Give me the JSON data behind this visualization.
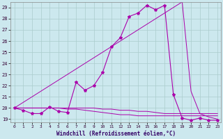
{
  "title": "Windchill (Refroidissement éolien,°C)",
  "bg_color": "#cce8ee",
  "grid_color": "#aacccc",
  "line_color": "#aa00aa",
  "ylim_min": 18.7,
  "ylim_max": 29.5,
  "xlim_min": -0.4,
  "xlim_max": 23.4,
  "yticks": [
    19,
    20,
    21,
    22,
    23,
    24,
    25,
    26,
    27,
    28,
    29
  ],
  "xticks": [
    0,
    1,
    2,
    3,
    4,
    5,
    6,
    7,
    8,
    9,
    10,
    11,
    12,
    13,
    14,
    15,
    16,
    17,
    18,
    19,
    20,
    21,
    22,
    23
  ],
  "hours": [
    0,
    1,
    2,
    3,
    4,
    5,
    6,
    7,
    8,
    9,
    10,
    11,
    12,
    13,
    14,
    15,
    16,
    17,
    18,
    19,
    20,
    21,
    22,
    23
  ],
  "main_series": [
    20.0,
    19.8,
    19.5,
    19.5,
    20.1,
    19.7,
    19.6,
    22.3,
    21.6,
    22.0,
    23.2,
    25.5,
    26.3,
    28.2,
    28.5,
    29.2,
    28.8,
    29.2,
    21.2,
    19.1,
    18.9,
    19.1,
    18.9,
    18.9
  ],
  "smooth_line": [
    20.0,
    20.5,
    21.0,
    21.5,
    22.0,
    22.5,
    23.0,
    23.5,
    24.0,
    24.5,
    25.0,
    25.5,
    26.0,
    26.5,
    27.0,
    27.5,
    28.0,
    28.5,
    29.0,
    29.5,
    21.5,
    19.5,
    19.2,
    19.0
  ],
  "flat_line1": [
    20.0,
    20.0,
    20.0,
    20.0,
    20.0,
    20.0,
    20.0,
    20.0,
    20.0,
    20.0,
    19.9,
    19.9,
    19.8,
    19.8,
    19.7,
    19.7,
    19.6,
    19.5,
    19.5,
    19.5,
    19.5,
    19.5,
    19.5,
    19.5
  ],
  "flat_line2": [
    20.0,
    20.0,
    20.0,
    20.0,
    20.0,
    20.0,
    19.9,
    19.9,
    19.8,
    19.7,
    19.6,
    19.5,
    19.4,
    19.4,
    19.3,
    19.3,
    19.3,
    19.3,
    19.3,
    19.3,
    19.3,
    19.3,
    19.3,
    19.3
  ]
}
